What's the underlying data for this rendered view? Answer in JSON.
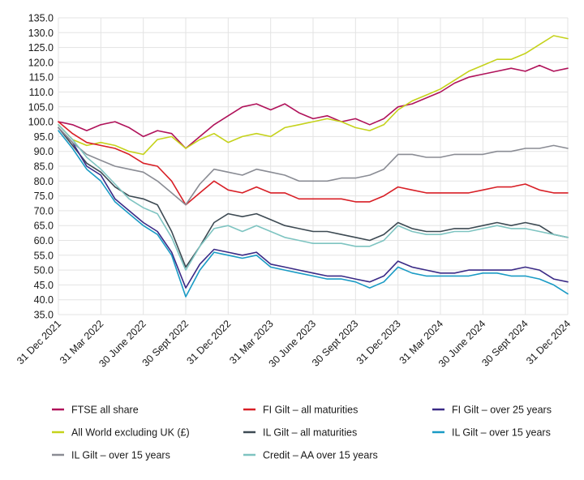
{
  "chart_data": {
    "type": "line",
    "title": "",
    "xlabel": "",
    "ylabel": "",
    "ylim": [
      35,
      135
    ],
    "y_ticks": [
      "35.0",
      "40.0",
      "45.0",
      "50.0",
      "55.0",
      "60.0",
      "65.0",
      "70.0",
      "75.0",
      "80.0",
      "85.0",
      "90.0",
      "95.0",
      "100.0",
      "105.0",
      "110.0",
      "115.0",
      "120.0",
      "125.0",
      "130.0",
      "135.0"
    ],
    "x_ticks": [
      "31 Dec 2021",
      "31 Mar 2022",
      "30 June 2022",
      "30 Sept 2022",
      "31 Dec 2022",
      "31 Mar 2023",
      "30 June 2023",
      "30 Sept 2023",
      "31 Dec 2023",
      "31 Mar 2024",
      "30 June 2024",
      "30 Sept 2024",
      "31 Dec 2024"
    ],
    "grid": true,
    "legend_position": "bottom",
    "x": [
      "31 Dec 2021",
      "31 Jan 2022",
      "28 Feb 2022",
      "31 Mar 2022",
      "30 Apr 2022",
      "31 May 2022",
      "30 June 2022",
      "31 Jul 2022",
      "31 Aug 2022",
      "30 Sept 2022",
      "31 Oct 2022",
      "30 Nov 2022",
      "31 Dec 2022",
      "31 Jan 2023",
      "28 Feb 2023",
      "31 Mar 2023",
      "30 Apr 2023",
      "31 May 2023",
      "30 June 2023",
      "31 Jul 2023",
      "31 Aug 2023",
      "30 Sept 2023",
      "31 Oct 2023",
      "30 Nov 2023",
      "31 Dec 2023",
      "31 Jan 2024",
      "29 Feb 2024",
      "31 Mar 2024",
      "30 Apr 2024",
      "31 May 2024",
      "30 June 2024",
      "31 Jul 2024",
      "31 Aug 2024",
      "30 Sept 2024",
      "31 Oct 2024",
      "30 Nov 2024",
      "31 Dec 2024"
    ],
    "series": [
      {
        "name": "FTSE all share",
        "color": "#b0125a",
        "values": [
          100,
          99,
          97,
          99,
          100,
          98,
          95,
          97,
          96,
          91,
          95,
          99,
          102,
          105,
          106,
          104,
          106,
          103,
          101,
          102,
          100,
          101,
          99,
          101,
          105,
          106,
          108,
          110,
          113,
          115,
          116,
          117,
          118,
          117,
          119,
          117,
          118
        ]
      },
      {
        "name": "All World excluding UK (£)",
        "color": "#c5d21b",
        "values": [
          99,
          94,
          92,
          93,
          92,
          90,
          89,
          94,
          95,
          91,
          94,
          96,
          93,
          95,
          96,
          95,
          98,
          99,
          100,
          101,
          100,
          98,
          97,
          99,
          104,
          107,
          109,
          111,
          114,
          117,
          119,
          121,
          121,
          123,
          126,
          129,
          128
        ]
      },
      {
        "name": "FI Gilt – all maturities",
        "color": "#d81f26",
        "values": [
          100,
          96,
          93,
          92,
          91,
          89,
          86,
          85,
          80,
          72,
          76,
          80,
          77,
          76,
          78,
          76,
          76,
          74,
          74,
          74,
          74,
          73,
          73,
          75,
          78,
          77,
          76,
          76,
          76,
          76,
          77,
          78,
          78,
          79,
          77,
          76,
          76
        ]
      },
      {
        "name": "IL Gilt – all maturities",
        "color": "#3d4a53",
        "values": [
          98,
          92,
          86,
          83,
          78,
          75,
          74,
          72,
          63,
          51,
          58,
          66,
          69,
          68,
          69,
          67,
          65,
          64,
          63,
          63,
          62,
          61,
          60,
          62,
          66,
          64,
          63,
          63,
          64,
          64,
          65,
          66,
          65,
          66,
          65,
          62,
          61
        ]
      },
      {
        "name": "FI Gilt – over 25 years",
        "color": "#3a2a86",
        "values": [
          98,
          93,
          85,
          82,
          74,
          70,
          66,
          63,
          56,
          44,
          52,
          57,
          56,
          55,
          56,
          52,
          51,
          50,
          49,
          48,
          48,
          47,
          46,
          48,
          53,
          51,
          50,
          49,
          49,
          50,
          50,
          50,
          50,
          51,
          50,
          47,
          46
        ]
      },
      {
        "name": "IL Gilt – over 15 years",
        "color": "#1a9bc5",
        "values": [
          97,
          91,
          84,
          80,
          73,
          69,
          65,
          62,
          55,
          41,
          50,
          56,
          55,
          54,
          55,
          51,
          50,
          49,
          48,
          47,
          47,
          46,
          44,
          46,
          51,
          49,
          48,
          48,
          48,
          48,
          49,
          49,
          48,
          48,
          47,
          45,
          42
        ]
      },
      {
        "name": "IL Gilt – over 15 years",
        "color": "#8a8c94",
        "values": [
          98,
          93,
          89,
          87,
          85,
          84,
          83,
          80,
          76,
          72,
          79,
          84,
          83,
          82,
          84,
          83,
          82,
          80,
          80,
          80,
          81,
          81,
          82,
          84,
          89,
          89,
          88,
          88,
          89,
          89,
          89,
          90,
          90,
          91,
          91,
          92,
          91
        ]
      },
      {
        "name": "Credit – AA over 15 years",
        "color": "#7ec4c1",
        "values": [
          99,
          94,
          88,
          84,
          79,
          74,
          71,
          69,
          61,
          50,
          58,
          64,
          65,
          63,
          65,
          63,
          61,
          60,
          59,
          59,
          59,
          58,
          58,
          60,
          65,
          63,
          62,
          62,
          63,
          63,
          64,
          65,
          64,
          64,
          63,
          62,
          61
        ]
      }
    ]
  },
  "legend": [
    {
      "label": "FTSE all share",
      "color": "#b0125a"
    },
    {
      "label": "FI Gilt – all maturities",
      "color": "#d81f26"
    },
    {
      "label": "FI Gilt – over 25 years",
      "color": "#3a2a86"
    },
    {
      "label": "All World excluding UK (£)",
      "color": "#c5d21b"
    },
    {
      "label": "IL Gilt – all maturities",
      "color": "#3d4a53"
    },
    {
      "label": "IL Gilt – over 15 years",
      "color": "#1a9bc5"
    },
    {
      "label": "IL Gilt – over 15 years",
      "color": "#8a8c94"
    },
    {
      "label": "Credit – AA over 15 years",
      "color": "#7ec4c1"
    }
  ]
}
